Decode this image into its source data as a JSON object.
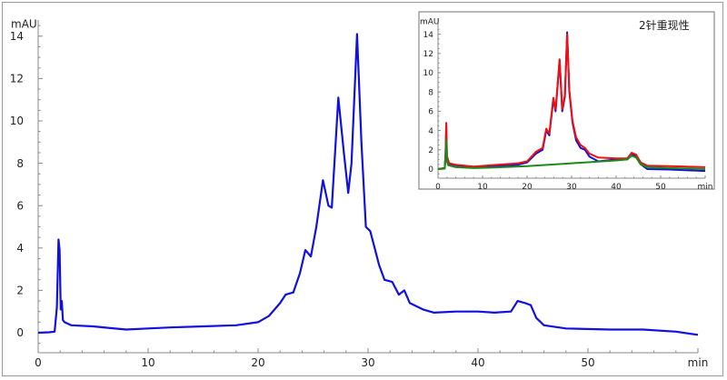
{
  "chart_data": [
    {
      "type": "line",
      "title": "",
      "xlabel": "min",
      "ylabel": "mAU",
      "xlim": [
        0,
        60
      ],
      "ylim": [
        -0.5,
        14.5
      ],
      "xticks": [
        0,
        10,
        20,
        30,
        40,
        50
      ],
      "yticks": [
        0,
        2,
        4,
        6,
        8,
        10,
        12,
        14
      ],
      "grid": false,
      "series": [
        {
          "name": "chromatogram",
          "color": "#1010e0",
          "x": [
            0,
            1,
            1.5,
            1.7,
            1.85,
            1.95,
            2.05,
            2.15,
            2.25,
            2.4,
            3,
            5,
            8,
            10,
            12,
            15,
            18,
            20,
            21,
            22,
            22.5,
            23.2,
            23.8,
            24.3,
            24.8,
            25.3,
            25.9,
            26.4,
            26.7,
            27.3,
            27.8,
            28.2,
            28.5,
            29.0,
            29.4,
            29.8,
            30.2,
            30.6,
            31,
            31.5,
            32.2,
            32.8,
            33.3,
            33.8,
            35,
            36,
            38,
            40,
            41.5,
            43,
            43.6,
            44.3,
            44.8,
            45.3,
            46,
            48,
            52,
            55,
            58,
            60
          ],
          "y": [
            0,
            0.02,
            0.05,
            1.2,
            4.4,
            3.9,
            1.1,
            1.5,
            0.6,
            0.5,
            0.35,
            0.3,
            0.15,
            0.2,
            0.25,
            0.3,
            0.35,
            0.5,
            0.8,
            1.4,
            1.8,
            1.9,
            2.8,
            3.9,
            3.6,
            5.0,
            7.2,
            6.0,
            5.9,
            11.1,
            8.5,
            6.6,
            8.0,
            14.1,
            9.0,
            5.0,
            4.8,
            4.0,
            3.2,
            2.5,
            2.4,
            1.8,
            2.0,
            1.4,
            1.1,
            0.95,
            1.0,
            1.0,
            0.95,
            1.0,
            1.5,
            1.4,
            1.3,
            0.7,
            0.35,
            0.2,
            0.15,
            0.15,
            0.05,
            -0.1
          ]
        }
      ]
    },
    {
      "type": "line",
      "title": "2针重现性",
      "xlabel": "min",
      "ylabel": "mAU",
      "xlim": [
        0,
        60
      ],
      "ylim": [
        -0.5,
        14.5
      ],
      "xticks": [
        0,
        10,
        20,
        30,
        40,
        50
      ],
      "yticks": [
        0,
        2,
        4,
        6,
        8,
        10,
        12,
        14
      ],
      "grid": false,
      "series": [
        {
          "name": "blue",
          "color": "#1010e0",
          "x": [
            0,
            1.5,
            1.7,
            1.85,
            2.0,
            2.2,
            2.5,
            4,
            8,
            12,
            18,
            20,
            22,
            23.5,
            24.3,
            25,
            25.9,
            26.4,
            27.3,
            27.9,
            28.5,
            29.0,
            29.5,
            30.2,
            31,
            32,
            33,
            34,
            36,
            40,
            42.5,
            43.5,
            44.5,
            45.5,
            47,
            52,
            60
          ],
          "y": [
            0,
            0.1,
            1.5,
            4.6,
            1.3,
            1.0,
            0.5,
            0.4,
            0.15,
            0.3,
            0.45,
            0.7,
            1.6,
            2.0,
            4.0,
            3.5,
            7.2,
            6.0,
            11.3,
            6.0,
            7.5,
            14.2,
            8.0,
            4.8,
            3.0,
            2.2,
            2.0,
            1.3,
            0.8,
            1.0,
            1.0,
            1.6,
            1.3,
            0.5,
            0.0,
            -0.05,
            -0.2
          ]
        },
        {
          "name": "red",
          "color": "#ee1010",
          "x": [
            0,
            1.5,
            1.7,
            1.85,
            2.0,
            2.2,
            2.5,
            4,
            8,
            12,
            18,
            20,
            22,
            23.5,
            24.3,
            25,
            25.9,
            26.4,
            27.3,
            27.9,
            28.5,
            29.0,
            29.5,
            30.2,
            31,
            32,
            33,
            34,
            36,
            40,
            42.5,
            43.5,
            44.5,
            45.5,
            47,
            52,
            60
          ],
          "y": [
            0,
            0.1,
            1.6,
            4.8,
            1.4,
            1.0,
            0.6,
            0.45,
            0.25,
            0.4,
            0.6,
            0.8,
            1.8,
            2.2,
            4.2,
            3.7,
            7.4,
            6.2,
            11.4,
            6.2,
            7.7,
            14.0,
            8.2,
            5.0,
            3.3,
            2.5,
            2.2,
            1.6,
            1.2,
            1.1,
            1.1,
            1.7,
            1.5,
            0.7,
            0.35,
            0.3,
            0.2
          ]
        },
        {
          "name": "green",
          "color": "#1a8a1a",
          "x": [
            0,
            1.5,
            1.7,
            1.85,
            2.0,
            2.3,
            4,
            8,
            12,
            20,
            30,
            40,
            42.5,
            43.5,
            44.5,
            45.5,
            47,
            52,
            60
          ],
          "y": [
            0,
            0.05,
            1.2,
            3.0,
            0.8,
            0.4,
            0.2,
            0.1,
            0.15,
            0.3,
            0.6,
            0.9,
            1.0,
            1.4,
            1.2,
            0.5,
            0.2,
            0.1,
            0.0
          ]
        }
      ]
    }
  ]
}
